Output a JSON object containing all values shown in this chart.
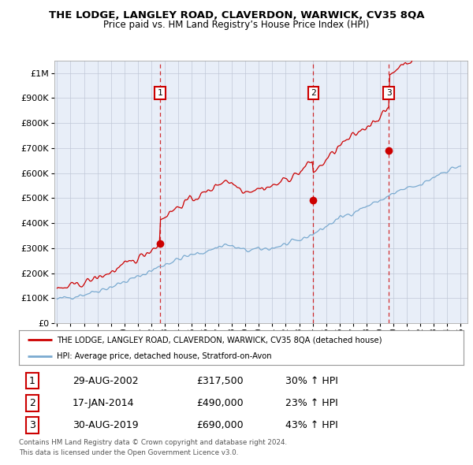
{
  "title": "THE LODGE, LANGLEY ROAD, CLAVERDON, WARWICK, CV35 8QA",
  "subtitle": "Price paid vs. HM Land Registry’s House Price Index (HPI)",
  "footer1": "Contains HM Land Registry data © Crown copyright and database right 2024.",
  "footer2": "This data is licensed under the Open Government Licence v3.0.",
  "legend_red": "THE LODGE, LANGLEY ROAD, CLAVERDON, WARWICK, CV35 8QA (detached house)",
  "legend_blue": "HPI: Average price, detached house, Stratford-on-Avon",
  "transactions": [
    {
      "label": "1",
      "date": "29-AUG-2002",
      "price": "£317,500",
      "pct": "30% ↑ HPI",
      "year": 2002.66
    },
    {
      "label": "2",
      "date": "17-JAN-2014",
      "price": "£490,000",
      "pct": "23% ↑ HPI",
      "year": 2014.04
    },
    {
      "label": "3",
      "date": "30-AUG-2019",
      "price": "£690,000",
      "pct": "43% ↑ HPI",
      "year": 2019.66
    }
  ],
  "transaction_values": [
    317500,
    490000,
    690000
  ],
  "ylim_max": 1050000,
  "xlim_start": 1994.8,
  "xlim_end": 2025.5,
  "plot_bg": "#e8eef8",
  "red_color": "#cc0000",
  "blue_color": "#7aaad0",
  "grid_color": "#c0c8d8",
  "box_color": "#cc0000"
}
